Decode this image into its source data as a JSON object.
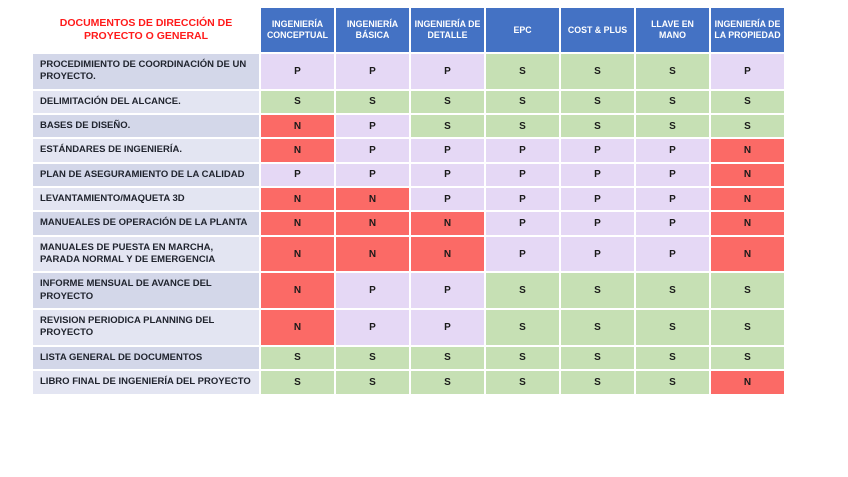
{
  "title": "DOCUMENTOS DE DIRECCIÓN DE PROYECTO O GENERAL",
  "columns": [
    "INGENIERÍA CONCEPTUAL",
    "INGENIERÍA BÁSICA",
    "INGENIERÍA DE DETALLE",
    "EPC",
    "COST & PLUS",
    "LLAVE EN MANO",
    "INGENIERÍA DE LA PROPIEDAD"
  ],
  "rows": [
    {
      "label": "PROCEDIMIENTO DE COORDINACIÓN DE UN PROYECTO.",
      "values": [
        "P",
        "P",
        "P",
        "S",
        "S",
        "S",
        "P"
      ]
    },
    {
      "label": "DELIMITACIÓN DEL ALCANCE.",
      "values": [
        "S",
        "S",
        "S",
        "S",
        "S",
        "S",
        "S"
      ]
    },
    {
      "label": "BASES DE DISEÑO.",
      "values": [
        "N",
        "P",
        "S",
        "S",
        "S",
        "S",
        "S"
      ]
    },
    {
      "label": "ESTÁNDARES DE INGENIERÍA.",
      "values": [
        "N",
        "P",
        "P",
        "P",
        "P",
        "P",
        "N"
      ]
    },
    {
      "label": "PLAN DE ASEGURAMIENTO DE LA CALIDAD",
      "values": [
        "P",
        "P",
        "P",
        "P",
        "P",
        "P",
        "N"
      ]
    },
    {
      "label": "LEVANTAMIENTO/MAQUETA 3D",
      "values": [
        "N",
        "N",
        "P",
        "P",
        "P",
        "P",
        "N"
      ]
    },
    {
      "label": "MANUEALES DE OPERACIÓN DE LA PLANTA",
      "values": [
        "N",
        "N",
        "N",
        "P",
        "P",
        "P",
        "N"
      ]
    },
    {
      "label": "MANUALES DE PUESTA EN MARCHA, PARADA NORMAL Y DE EMERGENCIA",
      "values": [
        "N",
        "N",
        "N",
        "P",
        "P",
        "P",
        "N"
      ]
    },
    {
      "label": "INFORME MENSUAL DE AVANCE DEL PROYECTO",
      "values": [
        "N",
        "P",
        "P",
        "S",
        "S",
        "S",
        "S"
      ]
    },
    {
      "label": "REVISION PERIODICA PLANNING DEL PROYECTO",
      "values": [
        "N",
        "P",
        "P",
        "S",
        "S",
        "S",
        "S"
      ]
    },
    {
      "label": "LISTA GENERAL DE DOCUMENTOS",
      "values": [
        "S",
        "S",
        "S",
        "S",
        "S",
        "S",
        "S"
      ]
    },
    {
      "label": "LIBRO FINAL DE INGENIERÍA DEL PROYECTO",
      "values": [
        "S",
        "S",
        "S",
        "S",
        "S",
        "S",
        "N"
      ]
    }
  ],
  "value_colors": {
    "P": "#e5d8f5",
    "S": "#c6e0b4",
    "N": "#fb6a66"
  },
  "colors": {
    "header_bg": "#4472c4",
    "header_text": "#ffffff",
    "title_text": "#ff1a1a",
    "label_band_odd": "#d3d7e9",
    "label_band_even": "#e3e5f2"
  }
}
